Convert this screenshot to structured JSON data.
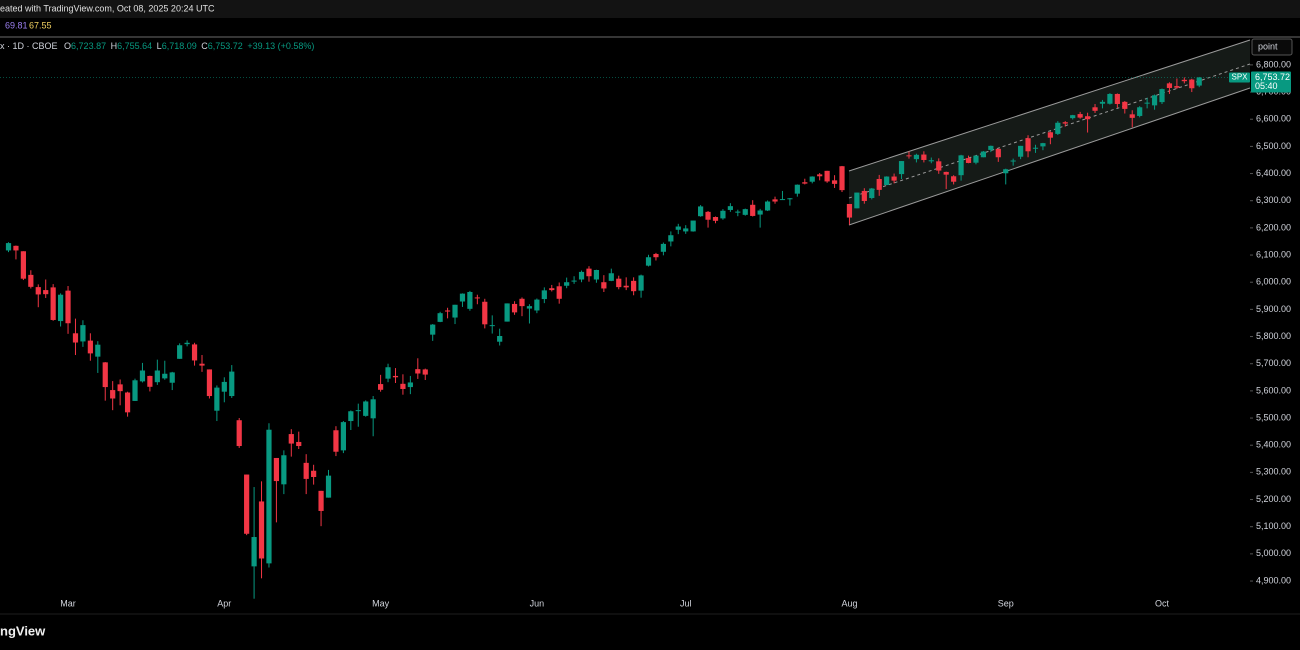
{
  "header": {
    "watermark": "eated with TradingView.com, Oct 08, 2025 20:24 UTC",
    "indicators": [
      "69.81",
      "67.55"
    ],
    "symbol": "x · 1D · CBOE",
    "ohlc": [
      {
        "key": "O",
        "value": "6,723.87"
      },
      {
        "key": "H",
        "value": "6,755.64"
      },
      {
        "key": "L",
        "value": "6,718.09"
      },
      {
        "key": "C",
        "value": "6,753.72"
      }
    ],
    "change": "+39.13 (+0.58%)",
    "button": "point"
  },
  "price_label": {
    "symbol": "SPX",
    "price": "6,753.72",
    "countdown": "05:40"
  },
  "footer": {
    "logo": "ngView"
  },
  "chart_data": {
    "type": "candlestick",
    "categories": [
      null,
      null,
      null,
      null,
      null,
      null,
      null,
      null,
      "Mar",
      null,
      null,
      null,
      null,
      null,
      null,
      null,
      null,
      null,
      null,
      null,
      null,
      null,
      null,
      null,
      null,
      null,
      null,
      null,
      null,
      "Apr",
      null,
      null,
      null,
      null,
      null,
      null,
      null,
      null,
      null,
      null,
      null,
      null,
      null,
      null,
      null,
      null,
      null,
      null,
      null,
      null,
      "May",
      null,
      null,
      null,
      null,
      null,
      null,
      null,
      null,
      null,
      null,
      null,
      null,
      null,
      null,
      null,
      null,
      null,
      null,
      null,
      null,
      "Jun",
      null,
      null,
      null,
      null,
      null,
      null,
      null,
      null,
      null,
      null,
      null,
      null,
      null,
      null,
      null,
      null,
      null,
      null,
      null,
      "Jul",
      null,
      null,
      null,
      null,
      null,
      null,
      null,
      null,
      null,
      null,
      null,
      null,
      null,
      null,
      null,
      null,
      null,
      null,
      null,
      null,
      null,
      "Aug",
      null,
      null,
      null,
      null,
      null,
      null,
      null,
      null,
      null,
      null,
      null,
      null,
      null,
      null,
      null,
      null,
      null,
      null,
      null,
      null,
      "Sep",
      null,
      null,
      null,
      null,
      null,
      null,
      null,
      null,
      null,
      null,
      null,
      null,
      null,
      null,
      null,
      null,
      null,
      null,
      null,
      null,
      "Oct",
      null,
      null,
      null,
      null,
      null
    ],
    "candles": [
      [
        6117,
        6147,
        6111,
        6144
      ],
      [
        6134,
        6135,
        6084,
        6117
      ],
      [
        6114,
        6114,
        6008,
        6013
      ],
      [
        6027,
        6044,
        5977,
        5983
      ],
      [
        5982,
        5992,
        5908,
        5955
      ],
      [
        5971,
        6010,
        5942,
        5956
      ],
      [
        5981,
        5993,
        5858,
        5861
      ],
      [
        5857,
        5959,
        5837,
        5954
      ],
      [
        5969,
        5986,
        5810,
        5849
      ],
      [
        5812,
        5866,
        5732,
        5778
      ],
      [
        5782,
        5860,
        5762,
        5842
      ],
      [
        5785,
        5812,
        5711,
        5738
      ],
      [
        5726,
        5783,
        5666,
        5770
      ],
      [
        5705,
        5706,
        5564,
        5614
      ],
      [
        5603,
        5636,
        5529,
        5572
      ],
      [
        5624,
        5642,
        5547,
        5599
      ],
      [
        5594,
        5597,
        5505,
        5521
      ],
      [
        5563,
        5645,
        5563,
        5639
      ],
      [
        5635,
        5703,
        5631,
        5675
      ],
      [
        5655,
        5656,
        5598,
        5615
      ],
      [
        5632,
        5715,
        5622,
        5675
      ],
      [
        5646,
        5711,
        5641,
        5663
      ],
      [
        5630,
        5670,
        5603,
        5668
      ],
      [
        5718,
        5775,
        5718,
        5768
      ],
      [
        5772,
        5786,
        5764,
        5777
      ],
      [
        5771,
        5777,
        5693,
        5712
      ],
      [
        5700,
        5732,
        5670,
        5693
      ],
      [
        5679,
        5679,
        5572,
        5581
      ],
      [
        5527,
        5620,
        5489,
        5612
      ],
      [
        5597,
        5650,
        5558,
        5633
      ],
      [
        5581,
        5695,
        5574,
        5671
      ],
      [
        5492,
        5500,
        5390,
        5397
      ],
      [
        5292,
        5292,
        5069,
        5074
      ],
      [
        4954,
        5246,
        4835,
        5062
      ],
      [
        5193,
        5267,
        4910,
        4983
      ],
      [
        4965,
        5481,
        4950,
        5457
      ],
      [
        5353,
        5353,
        5116,
        5268
      ],
      [
        5256,
        5381,
        5220,
        5363
      ],
      [
        5441,
        5459,
        5358,
        5406
      ],
      [
        5412,
        5450,
        5386,
        5397
      ],
      [
        5335,
        5367,
        5220,
        5276
      ],
      [
        5306,
        5328,
        5255,
        5283
      ],
      [
        5232,
        5232,
        5102,
        5158
      ],
      [
        5207,
        5309,
        5207,
        5288
      ],
      [
        5455,
        5470,
        5360,
        5376
      ],
      [
        5381,
        5489,
        5371,
        5485
      ],
      [
        5489,
        5528,
        5456,
        5525
      ],
      [
        5529,
        5553,
        5468,
        5529
      ],
      [
        5508,
        5565,
        5505,
        5561
      ],
      [
        5499,
        5581,
        5433,
        5569
      ],
      [
        5625,
        5659,
        5597,
        5604
      ],
      [
        5645,
        5700,
        5632,
        5687
      ],
      [
        5655,
        5684,
        5629,
        5650
      ],
      [
        5626,
        5661,
        5586,
        5607
      ],
      [
        5614,
        5655,
        5588,
        5631
      ],
      [
        5680,
        5720,
        5644,
        5664
      ],
      [
        5679,
        5682,
        5640,
        5660
      ],
      [
        5807,
        5846,
        5784,
        5844
      ],
      [
        5854,
        5891,
        5853,
        5886
      ],
      [
        5896,
        5906,
        5867,
        5892
      ],
      [
        5870,
        5917,
        5846,
        5917
      ],
      [
        5929,
        5959,
        5909,
        5958
      ],
      [
        5902,
        5968,
        5895,
        5964
      ],
      [
        5944,
        5954,
        5919,
        5941
      ],
      [
        5928,
        5939,
        5830,
        5845
      ],
      [
        5842,
        5878,
        5811,
        5842
      ],
      [
        5781,
        5829,
        5767,
        5802
      ],
      [
        5855,
        5922,
        5855,
        5922
      ],
      [
        5920,
        5930,
        5880,
        5889
      ],
      [
        5939,
        5944,
        5875,
        5912
      ],
      [
        5903,
        5919,
        5848,
        5912
      ],
      [
        5896,
        5940,
        5886,
        5936
      ],
      [
        5938,
        5981,
        5923,
        5970
      ],
      [
        5978,
        5990,
        5966,
        5971
      ],
      [
        5985,
        5999,
        5921,
        5939
      ],
      [
        5987,
        6017,
        5978,
        6000
      ],
      [
        6004,
        6022,
        5994,
        6006
      ],
      [
        6010,
        6043,
        6000,
        6038
      ],
      [
        6050,
        6059,
        6002,
        6022
      ],
      [
        6010,
        6046,
        5998,
        6045
      ],
      [
        6000,
        6026,
        5964,
        5977
      ],
      [
        6005,
        6050,
        6004,
        6033
      ],
      [
        6013,
        6024,
        5974,
        5982
      ],
      [
        5987,
        6018,
        5971,
        5981
      ],
      [
        6005,
        6018,
        5952,
        5967
      ],
      [
        5969,
        6028,
        5943,
        6025
      ],
      [
        6061,
        6101,
        6058,
        6092
      ],
      [
        6104,
        6108,
        6080,
        6092
      ],
      [
        6112,
        6146,
        6099,
        6141
      ],
      [
        6150,
        6187,
        6132,
        6173
      ],
      [
        6193,
        6215,
        6177,
        6205
      ],
      [
        6187,
        6210,
        6178,
        6198
      ],
      [
        6187,
        6227,
        6186,
        6227
      ],
      [
        6243,
        6284,
        6241,
        6279
      ],
      [
        6259,
        6262,
        6201,
        6230
      ],
      [
        6240,
        6242,
        6217,
        6226
      ],
      [
        6235,
        6269,
        6230,
        6263
      ],
      [
        6266,
        6291,
        6259,
        6280
      ],
      [
        6256,
        6267,
        6243,
        6260
      ],
      [
        6248,
        6271,
        6245,
        6269
      ],
      [
        6285,
        6302,
        6242,
        6244
      ],
      [
        6249,
        6270,
        6201,
        6264
      ],
      [
        6264,
        6301,
        6262,
        6297
      ],
      [
        6305,
        6315,
        6289,
        6297
      ],
      [
        6304,
        6336,
        6304,
        6306
      ],
      [
        6307,
        6310,
        6282,
        6309
      ],
      [
        6326,
        6360,
        6315,
        6359
      ],
      [
        6368,
        6381,
        6360,
        6363
      ],
      [
        6370,
        6390,
        6364,
        6389
      ],
      [
        6397,
        6402,
        6375,
        6390
      ],
      [
        6410,
        6410,
        6366,
        6371
      ],
      [
        6375,
        6394,
        6347,
        6362
      ],
      [
        6427,
        6428,
        6332,
        6339
      ],
      [
        6288,
        6288,
        6212,
        6238
      ],
      [
        6272,
        6330,
        6272,
        6330
      ],
      [
        6336,
        6346,
        6289,
        6299
      ],
      [
        6310,
        6347,
        6305,
        6345
      ],
      [
        6380,
        6395,
        6318,
        6340
      ],
      [
        6358,
        6390,
        6357,
        6389
      ],
      [
        6389,
        6400,
        6364,
        6374
      ],
      [
        6398,
        6446,
        6380,
        6446
      ],
      [
        6467,
        6481,
        6455,
        6466
      ],
      [
        6453,
        6473,
        6441,
        6469
      ],
      [
        6470,
        6482,
        6441,
        6450
      ],
      [
        6445,
        6459,
        6438,
        6449
      ],
      [
        6445,
        6456,
        6399,
        6411
      ],
      [
        6406,
        6407,
        6343,
        6396
      ],
      [
        6390,
        6394,
        6360,
        6370
      ],
      [
        6394,
        6469,
        6374,
        6467
      ],
      [
        6457,
        6466,
        6438,
        6439
      ],
      [
        6440,
        6467,
        6434,
        6466
      ],
      [
        6460,
        6483,
        6460,
        6481
      ],
      [
        6487,
        6503,
        6479,
        6502
      ],
      [
        6491,
        6491,
        6443,
        6460
      ],
      [
        6401,
        6418,
        6360,
        6416
      ],
      [
        6445,
        6455,
        6429,
        6448
      ],
      [
        6462,
        6502,
        6453,
        6502
      ],
      [
        6530,
        6541,
        6460,
        6482
      ],
      [
        6494,
        6506,
        6476,
        6495
      ],
      [
        6500,
        6513,
        6486,
        6512
      ],
      [
        6552,
        6555,
        6508,
        6532
      ],
      [
        6546,
        6593,
        6542,
        6587
      ],
      [
        6589,
        6593,
        6573,
        6584
      ],
      [
        6604,
        6616,
        6599,
        6615
      ],
      [
        6619,
        6627,
        6602,
        6606
      ],
      [
        6611,
        6624,
        6551,
        6600
      ],
      [
        6644,
        6656,
        6623,
        6631
      ],
      [
        6657,
        6671,
        6640,
        6664
      ],
      [
        6657,
        6696,
        6654,
        6693
      ],
      [
        6693,
        6695,
        6642,
        6656
      ],
      [
        6664,
        6667,
        6621,
        6638
      ],
      [
        6618,
        6633,
        6570,
        6605
      ],
      [
        6612,
        6648,
        6607,
        6644
      ],
      [
        6661,
        6679,
        6640,
        6661
      ],
      [
        6651,
        6691,
        6635,
        6688
      ],
      [
        6663,
        6713,
        6656,
        6711
      ],
      [
        6732,
        6736,
        6693,
        6715
      ],
      [
        6722,
        6750,
        6712,
        6716
      ],
      [
        6745,
        6754,
        6732,
        6740
      ],
      [
        6746,
        6749,
        6700,
        6714
      ],
      [
        6723.87,
        6755.64,
        6718.09,
        6753.72
      ]
    ],
    "up_color": "#089981",
    "down_color": "#f23645",
    "ylim": [
      4867,
      6899
    ],
    "yticks": [
      {
        "value": 4900,
        "label": "4,900.00"
      },
      {
        "value": 5000,
        "label": "5,000.00"
      },
      {
        "value": 5100,
        "label": "5,100.00"
      },
      {
        "value": 5200,
        "label": "5,200.00"
      },
      {
        "value": 5300,
        "label": "5,300.00"
      },
      {
        "value": 5400,
        "label": "5,400.00"
      },
      {
        "value": 5500,
        "label": "5,500.00"
      },
      {
        "value": 5600,
        "label": "5,600.00"
      },
      {
        "value": 5700,
        "label": "5,700.00"
      },
      {
        "value": 5800,
        "label": "5,800.00"
      },
      {
        "value": 5900,
        "label": "5,900.00"
      },
      {
        "value": 6000,
        "label": "6,000.00"
      },
      {
        "value": 6100,
        "label": "6,100.00"
      },
      {
        "value": 6200,
        "label": "6,200.00"
      },
      {
        "value": 6300,
        "label": "6,300.00"
      },
      {
        "value": 6400,
        "label": "6,400.00"
      },
      {
        "value": 6500,
        "label": "6,500.00"
      },
      {
        "value": 6600,
        "label": "6,600.00"
      },
      {
        "value": 6700,
        "label": "6,700.00"
      },
      {
        "value": 6800,
        "label": "6,800.00"
      }
    ],
    "grid": false
  }
}
